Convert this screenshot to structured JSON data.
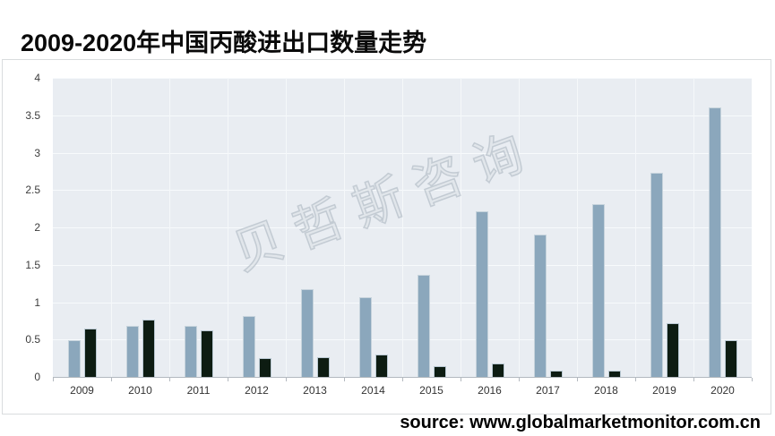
{
  "title": "2009-2020年中国丙酸进出口数量走势",
  "watermark": "贝哲斯咨询",
  "source_line": "source: www.globalmarketmonitor.com.cn",
  "chart_data": {
    "type": "bar",
    "title": "2009-2020年中国丙酸进出口数量走势",
    "categories": [
      "2009",
      "2010",
      "2011",
      "2012",
      "2013",
      "2014",
      "2015",
      "2016",
      "2017",
      "2018",
      "2019",
      "2020"
    ],
    "series": [
      {
        "name": "series-light-blue",
        "color": "#8ba7bc",
        "values": [
          0.49,
          0.68,
          0.68,
          0.81,
          1.17,
          1.07,
          1.37,
          2.22,
          1.91,
          2.31,
          2.73,
          3.61
        ]
      },
      {
        "name": "series-dark-green",
        "color": "#0d1c12",
        "values": [
          0.65,
          0.77,
          0.62,
          0.25,
          0.26,
          0.3,
          0.15,
          0.18,
          0.09,
          0.08,
          0.72,
          0.49
        ]
      }
    ],
    "xlabel": "",
    "ylabel": "",
    "ylim": [
      0,
      4
    ],
    "ytick_step": 0.5,
    "ytick_labels": [
      "0",
      "0.5",
      "1",
      "1.5",
      "2",
      "2.5",
      "3",
      "3.5",
      "4"
    ],
    "legend": "none",
    "grid": true,
    "plot_background": "#e9edf2",
    "gridline_color": "#f7fafc"
  }
}
